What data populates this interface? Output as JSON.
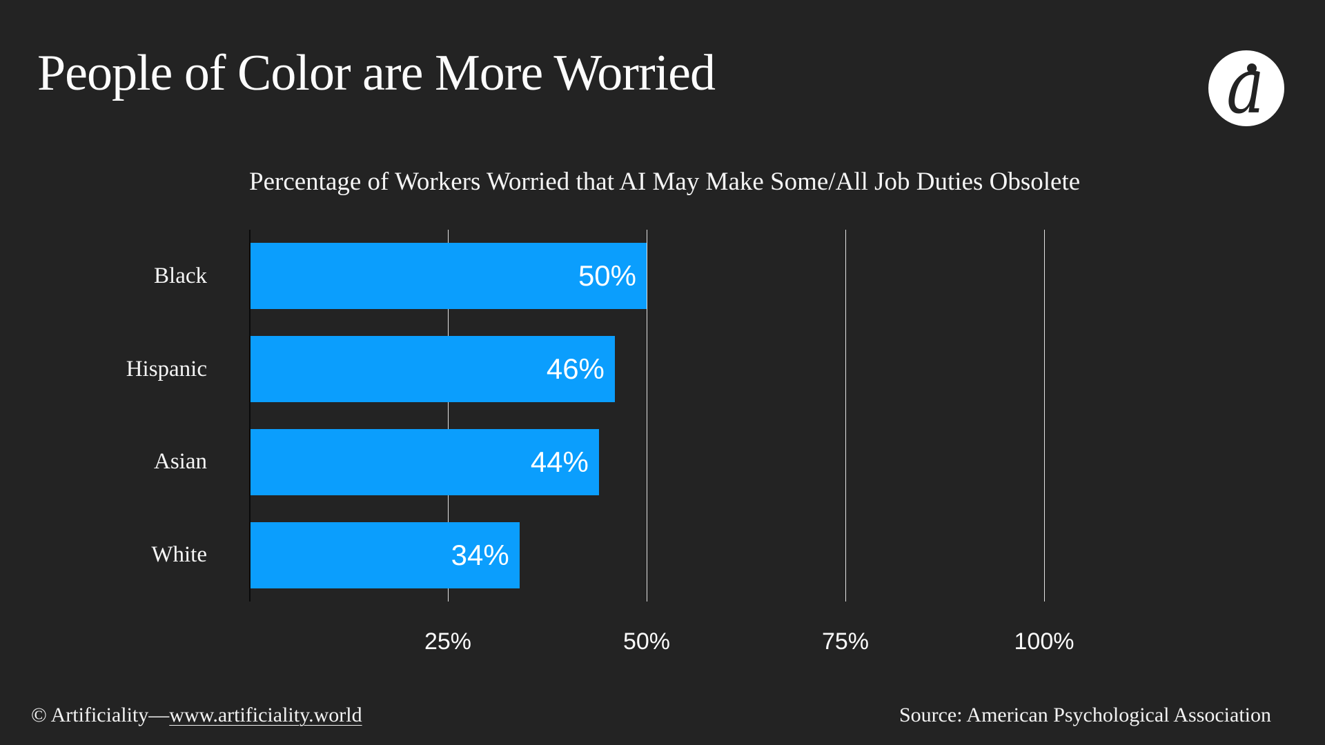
{
  "page": {
    "background": "#232323"
  },
  "header": {
    "title": "People of Color are More Worried",
    "logo": {
      "glyph": "a",
      "background": "#ffffff",
      "foreground": "#232323"
    }
  },
  "chart_data": {
    "type": "bar",
    "orientation": "horizontal",
    "title": "Percentage of Workers Worried that AI May Make Some/All Job Duties Obsolete",
    "categories": [
      "Black",
      "Hispanic",
      "Asian",
      "White"
    ],
    "values": [
      50,
      46,
      44,
      34
    ],
    "value_labels": [
      "50%",
      "46%",
      "44%",
      "34%"
    ],
    "x_ticks": [
      {
        "value": 25,
        "label": "25%"
      },
      {
        "value": 50,
        "label": "50%"
      },
      {
        "value": 75,
        "label": "75%"
      },
      {
        "value": 100,
        "label": "100%"
      }
    ],
    "xlim": [
      0,
      100
    ],
    "grid": true,
    "legend": false,
    "bar_color": "#0b9efd",
    "gridline_color": "rgba(255,255,255,0.88)",
    "axis_line_color": "#0a0a0a",
    "label_color": "#ffffff"
  },
  "footer": {
    "copyright_prefix": "© Artificiality—",
    "link": "www.artificiality.world",
    "source": "Source: American Psychological Association"
  }
}
